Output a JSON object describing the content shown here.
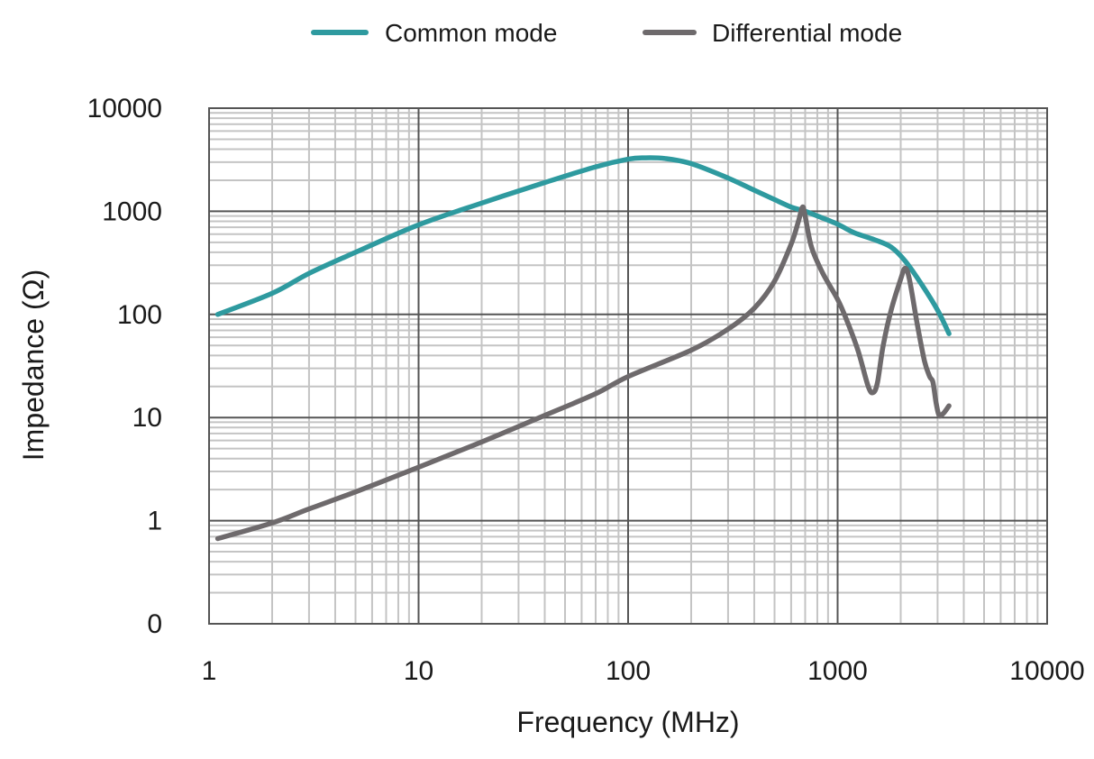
{
  "chart_data": {
    "type": "line",
    "title": "",
    "xlabel": "Frequency (MHz)",
    "ylabel": "Impedance (Ω)",
    "xscale": "log",
    "yscale": "log",
    "xlim": [
      1,
      10000
    ],
    "ylim": [
      0.1,
      10000
    ],
    "x_tick_labels": [
      "1",
      "10",
      "100",
      "1000",
      "10000"
    ],
    "x_tick_values": [
      1,
      10,
      100,
      1000,
      10000
    ],
    "y_tick_labels": [
      "0",
      "1",
      "10",
      "100",
      "1000",
      "10000"
    ],
    "y_tick_values": [
      0.1,
      1,
      10,
      100,
      1000,
      10000
    ],
    "grid": true,
    "legend_position": "top-center",
    "series": [
      {
        "name": "Common mode",
        "color": "#2e9a9f",
        "points": [
          [
            1.1,
            100
          ],
          [
            2,
            160
          ],
          [
            3,
            250
          ],
          [
            5,
            400
          ],
          [
            10,
            740
          ],
          [
            20,
            1200
          ],
          [
            40,
            1900
          ],
          [
            70,
            2700
          ],
          [
            100,
            3200
          ],
          [
            120,
            3300
          ],
          [
            150,
            3250
          ],
          [
            200,
            2900
          ],
          [
            300,
            2100
          ],
          [
            400,
            1600
          ],
          [
            500,
            1300
          ],
          [
            600,
            1100
          ],
          [
            700,
            1000
          ],
          [
            800,
            900
          ],
          [
            1000,
            750
          ],
          [
            1200,
            620
          ],
          [
            1500,
            530
          ],
          [
            1800,
            450
          ],
          [
            2100,
            330
          ],
          [
            2500,
            200
          ],
          [
            3000,
            110
          ],
          [
            3400,
            65
          ]
        ]
      },
      {
        "name": "Differential mode",
        "color": "#6e6a6c",
        "points": [
          [
            1.1,
            0.67
          ],
          [
            2,
            0.95
          ],
          [
            3,
            1.3
          ],
          [
            5,
            1.9
          ],
          [
            10,
            3.3
          ],
          [
            20,
            5.8
          ],
          [
            40,
            10.5
          ],
          [
            70,
            17
          ],
          [
            100,
            25
          ],
          [
            200,
            45
          ],
          [
            300,
            72
          ],
          [
            400,
            115
          ],
          [
            500,
            210
          ],
          [
            600,
            480
          ],
          [
            650,
            800
          ],
          [
            680,
            1100
          ],
          [
            700,
            900
          ],
          [
            750,
            450
          ],
          [
            850,
            250
          ],
          [
            1000,
            140
          ],
          [
            1100,
            90
          ],
          [
            1250,
            45
          ],
          [
            1400,
            20
          ],
          [
            1480,
            17.5
          ],
          [
            1550,
            22
          ],
          [
            1650,
            50
          ],
          [
            1800,
            110
          ],
          [
            2000,
            220
          ],
          [
            2100,
            280
          ],
          [
            2200,
            220
          ],
          [
            2400,
            80
          ],
          [
            2600,
            35
          ],
          [
            2750,
            25
          ],
          [
            2850,
            22
          ],
          [
            2950,
            14
          ],
          [
            3050,
            10.5
          ],
          [
            3200,
            11
          ],
          [
            3400,
            13
          ]
        ]
      }
    ]
  },
  "legend": {
    "items": [
      {
        "label": "Common mode",
        "color": "#2e9a9f"
      },
      {
        "label": "Differential mode",
        "color": "#6e6a6c"
      }
    ]
  }
}
